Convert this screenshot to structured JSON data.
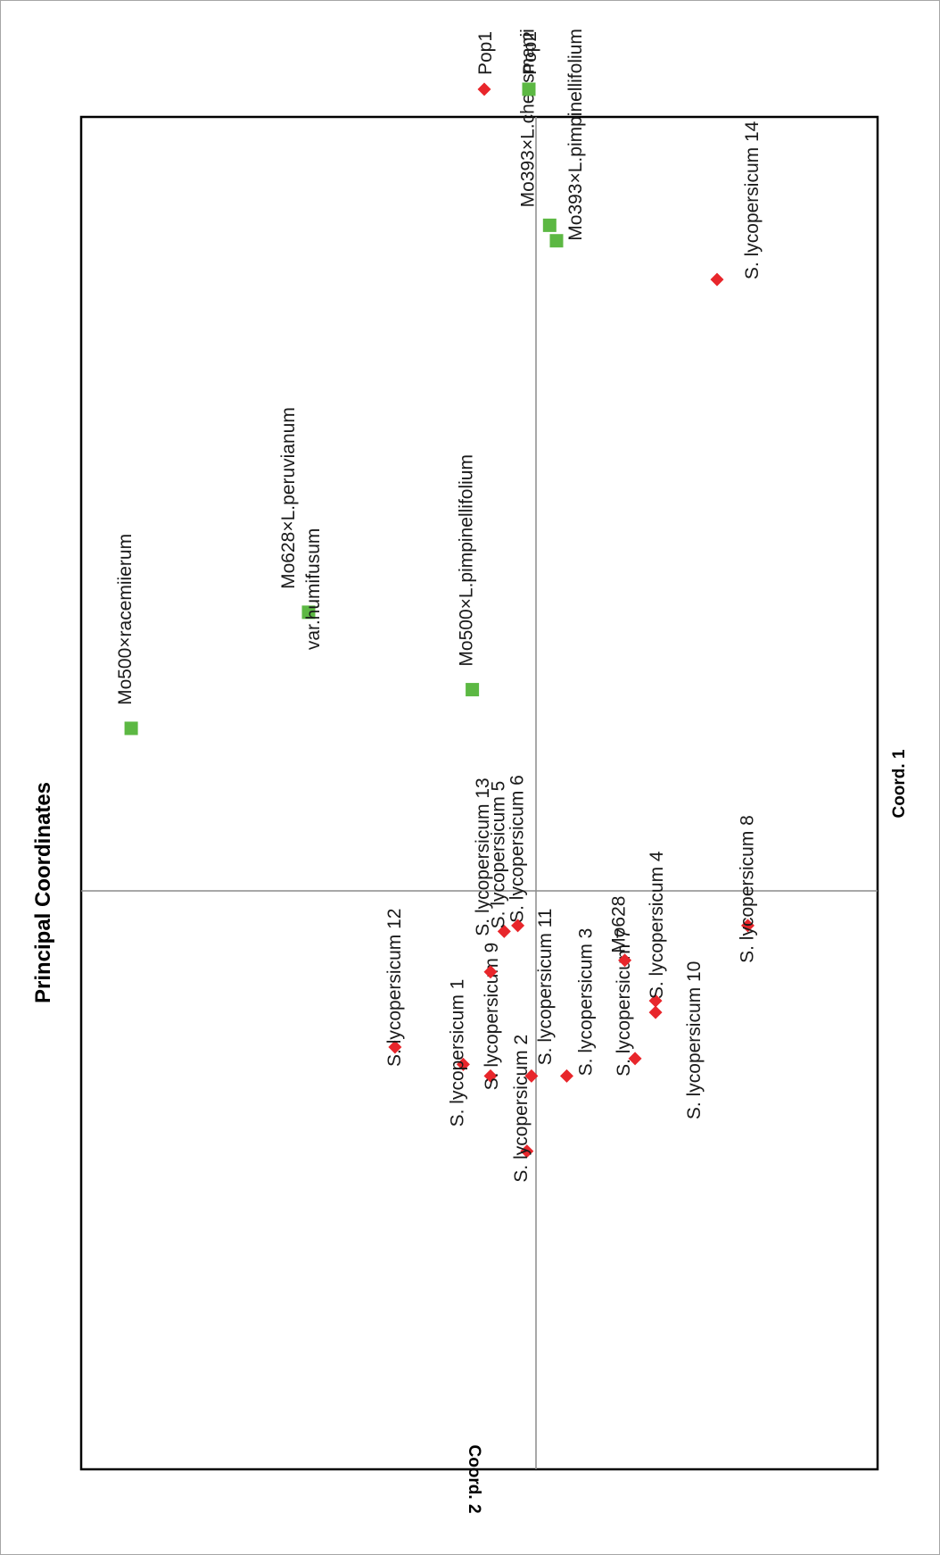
{
  "chart_data": {
    "type": "scatter",
    "title": "Principal Coordinates",
    "xlabel": "Coord. 1",
    "ylabel": "Coord. 2",
    "legend_placement": "top-right",
    "series": [
      {
        "name": "Pop1",
        "color": "#e8262b",
        "marker": "diamond",
        "points": [
          {
            "label": "S. lycopersicum 1",
            "x": -0.3,
            "y": -0.16
          },
          {
            "label": "S. lycopersicum 2",
            "x": -0.45,
            "y": -0.02
          },
          {
            "label": "S. lycopersicum 3",
            "x": -0.32,
            "y": 0.09
          },
          {
            "label": "S. lycopersicum 4",
            "x": -0.19,
            "y": 0.35
          },
          {
            "label": "S. lycopersicum 5",
            "x": -0.07,
            "y": -0.07
          },
          {
            "label": "S. lycopersicum 6",
            "x": -0.06,
            "y": -0.04
          },
          {
            "label": "S. lycopersicum 7",
            "x": -0.29,
            "y": 0.29
          },
          {
            "label": "S. lycopersicum 8",
            "x": -0.06,
            "y": 0.62
          },
          {
            "label": "S. lycopersicum 9",
            "x": -0.32,
            "y": -0.1
          },
          {
            "label": "S. lycopersicum 10",
            "x": -0.21,
            "y": 0.35
          },
          {
            "label": "S. lycopersicum 11",
            "x": -0.32,
            "y": -0.01
          },
          {
            "label": "S. lycopersicum 12",
            "x": -0.27,
            "y": -0.31
          },
          {
            "label": "S. lycopersicum 13",
            "x": -0.14,
            "y": -0.1
          },
          {
            "label": "S. lycopersicum 14",
            "x": 0.79,
            "y": 0.53
          },
          {
            "label": "Mo628",
            "x": -0.12,
            "y": 0.26
          }
        ]
      },
      {
        "name": "Pop2",
        "color": "#5cb843",
        "marker": "square",
        "points": [
          {
            "label": "Mo500×racemiierum",
            "x": 0.21,
            "y": -0.89
          },
          {
            "label": "Mo628×L.peruvianum var.humifusum",
            "x": 0.36,
            "y": -0.5
          },
          {
            "label": "Mo500×L.pimpinellifolium",
            "x": 0.26,
            "y": -0.14
          },
          {
            "label": "Mo393×L.cheesmanii",
            "x": 0.86,
            "y": 0.04
          },
          {
            "label": "Mo393×L.pimpinellifolium",
            "x": 0.84,
            "y": 0.06
          }
        ]
      }
    ],
    "xlim": [
      -1.0,
      1.0
    ],
    "ylim": [
      -1.0,
      1.0
    ],
    "zero_lines": true
  }
}
